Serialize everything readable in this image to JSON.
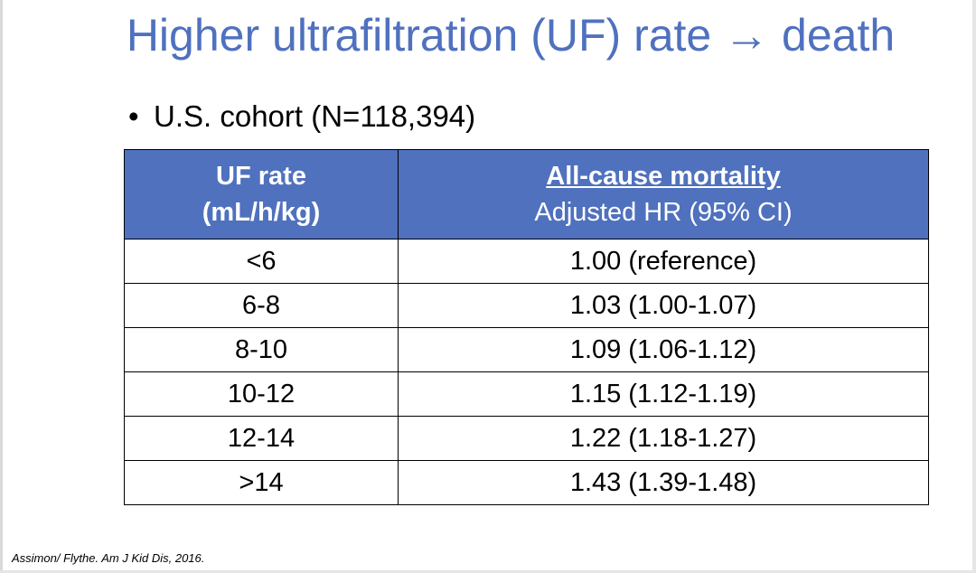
{
  "slide": {
    "title": "Higher ultrafiltration (UF) rate → death",
    "bullet_symbol": "•",
    "bullet_text": "U.S. cohort (N=118,394)",
    "citation": "Assimon/ Flythe. Am J Kid Dis, 2016."
  },
  "table": {
    "header": {
      "col1_line1": "UF rate",
      "col1_line2": "(mL/h/kg)",
      "col2_line1": "All-cause mortality",
      "col2_line2": "Adjusted HR (95% CI)"
    },
    "rows": [
      {
        "uf_rate": "<6",
        "hr": "1.00 (reference)"
      },
      {
        "uf_rate": "6-8",
        "hr": "1.03 (1.00-1.07)"
      },
      {
        "uf_rate": "8-10",
        "hr": "1.09 (1.06-1.12)"
      },
      {
        "uf_rate": "10-12",
        "hr": "1.15 (1.12-1.19)"
      },
      {
        "uf_rate": "12-14",
        "hr": "1.22 (1.18-1.27)"
      },
      {
        "uf_rate": ">14",
        "hr": "1.43 (1.39-1.48)"
      }
    ]
  },
  "colors": {
    "title": "#4f71be",
    "header_fill": "#4f71be",
    "header_text": "#ffffff"
  }
}
